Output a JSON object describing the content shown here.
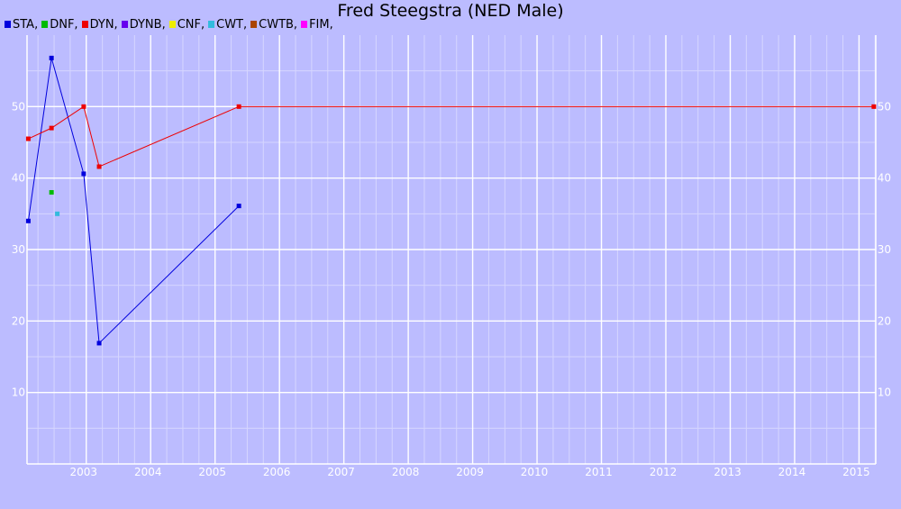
{
  "chart_data": {
    "type": "line",
    "title": "Fred Steegstra (NED Male)",
    "legend": [
      {
        "label": "STA,",
        "color": "#0000dd"
      },
      {
        "label": "DNF,",
        "color": "#00bb00"
      },
      {
        "label": "DYN,",
        "color": "#ee0000"
      },
      {
        "label": "DYNB,",
        "color": "#6600ee"
      },
      {
        "label": "CNF,",
        "color": "#eeee00"
      },
      {
        "label": "CWT,",
        "color": "#33bbdd"
      },
      {
        "label": "CWTB,",
        "color": "#aa4400"
      },
      {
        "label": "FIM,",
        "color": "#ff00ff"
      }
    ],
    "legend_position": "top-left",
    "xlim": [
      2002.08,
      2015.26
    ],
    "ylim": [
      0,
      60
    ],
    "grid": true,
    "x_ticks": [
      "2003",
      "2004",
      "2005",
      "2006",
      "2007",
      "2008",
      "2009",
      "2010",
      "2011",
      "2012",
      "2013",
      "2014",
      "2015"
    ],
    "y_ticks": [
      "10",
      "20",
      "30",
      "40",
      "50"
    ],
    "series": [
      {
        "name": "STA",
        "color": "#0000dd",
        "connected": true,
        "points": [
          [
            2002.1,
            34.0
          ],
          [
            2002.46,
            56.8
          ],
          [
            2002.96,
            40.6
          ],
          [
            2003.2,
            16.9
          ],
          [
            2005.37,
            36.1
          ]
        ]
      },
      {
        "name": "DNF",
        "color": "#00bb00",
        "connected": false,
        "points": [
          [
            2002.46,
            38.0
          ]
        ]
      },
      {
        "name": "DYN",
        "color": "#ee0000",
        "connected": true,
        "points": [
          [
            2002.1,
            45.5
          ],
          [
            2002.46,
            47.0
          ],
          [
            2002.96,
            50.0
          ],
          [
            2003.2,
            41.6
          ],
          [
            2005.37,
            50.0
          ],
          [
            2015.23,
            50.0
          ]
        ]
      },
      {
        "name": "CWT",
        "color": "#33bbdd",
        "connected": false,
        "points": [
          [
            2002.55,
            35.0
          ]
        ]
      }
    ]
  }
}
